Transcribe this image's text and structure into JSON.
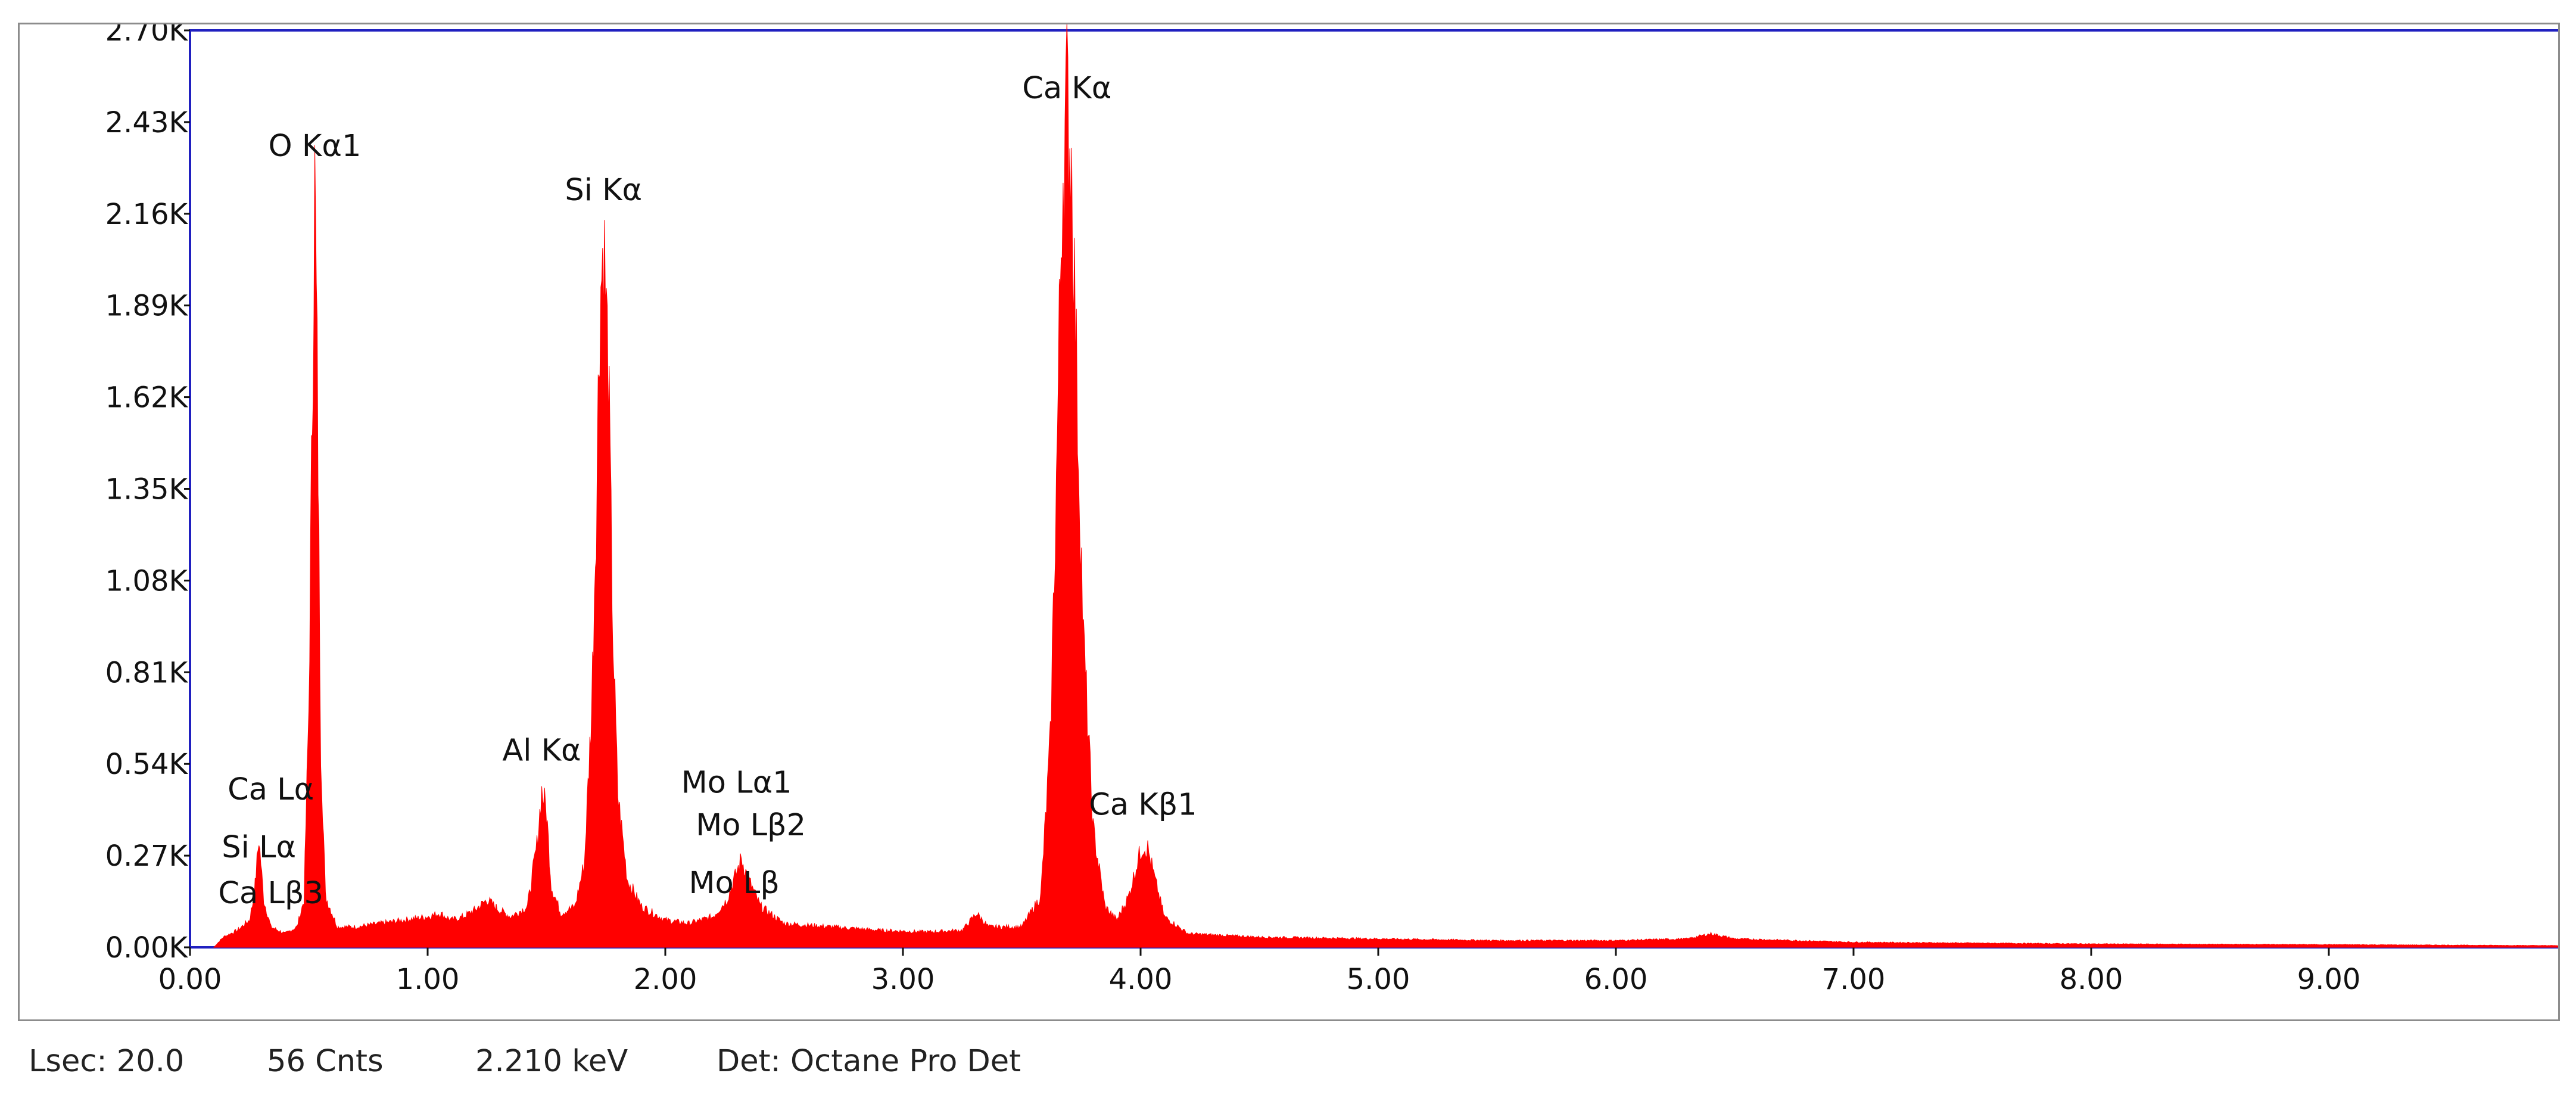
{
  "chart_data": {
    "type": "area",
    "title": "",
    "xlabel": "",
    "ylabel": "",
    "xlim": [
      0,
      10
    ],
    "ylim": [
      0,
      2700
    ],
    "x_ticks": [
      "0.00",
      "1.00",
      "2.00",
      "3.00",
      "4.00",
      "5.00",
      "6.00",
      "7.00",
      "8.00",
      "9.00"
    ],
    "y_ticks": [
      "0.00K",
      "0.27K",
      "0.54K",
      "0.81K",
      "1.08K",
      "1.35K",
      "1.62K",
      "1.89K",
      "2.16K",
      "2.43K",
      "2.70K"
    ],
    "grid": false,
    "series_color": "#ff0000",
    "spectrum": [
      [
        0.1,
        0
      ],
      [
        0.14,
        30
      ],
      [
        0.2,
        50
      ],
      [
        0.25,
        80
      ],
      [
        0.27,
        150
      ],
      [
        0.29,
        320
      ],
      [
        0.31,
        140
      ],
      [
        0.34,
        60
      ],
      [
        0.4,
        40
      ],
      [
        0.45,
        60
      ],
      [
        0.48,
        140
      ],
      [
        0.5,
        700
      ],
      [
        0.515,
        1600
      ],
      [
        0.525,
        2250
      ],
      [
        0.535,
        1700
      ],
      [
        0.55,
        600
      ],
      [
        0.57,
        150
      ],
      [
        0.62,
        60
      ],
      [
        0.7,
        60
      ],
      [
        0.8,
        70
      ],
      [
        0.9,
        80
      ],
      [
        1.0,
        90
      ],
      [
        1.05,
        100
      ],
      [
        1.1,
        80
      ],
      [
        1.15,
        90
      ],
      [
        1.2,
        110
      ],
      [
        1.25,
        140
      ],
      [
        1.3,
        110
      ],
      [
        1.35,
        90
      ],
      [
        1.42,
        120
      ],
      [
        1.46,
        300
      ],
      [
        1.48,
        460
      ],
      [
        1.5,
        400
      ],
      [
        1.52,
        180
      ],
      [
        1.56,
        100
      ],
      [
        1.62,
        120
      ],
      [
        1.66,
        250
      ],
      [
        1.69,
        700
      ],
      [
        1.71,
        1300
      ],
      [
        1.725,
        1900
      ],
      [
        1.74,
        2080
      ],
      [
        1.76,
        1700
      ],
      [
        1.78,
        900
      ],
      [
        1.8,
        450
      ],
      [
        1.84,
        200
      ],
      [
        1.9,
        120
      ],
      [
        2.0,
        80
      ],
      [
        2.1,
        70
      ],
      [
        2.2,
        90
      ],
      [
        2.26,
        140
      ],
      [
        2.29,
        200
      ],
      [
        2.32,
        260
      ],
      [
        2.35,
        200
      ],
      [
        2.4,
        120
      ],
      [
        2.5,
        70
      ],
      [
        2.7,
        60
      ],
      [
        2.9,
        50
      ],
      [
        3.1,
        45
      ],
      [
        3.25,
        50
      ],
      [
        3.31,
        100
      ],
      [
        3.36,
        60
      ],
      [
        3.5,
        60
      ],
      [
        3.58,
        150
      ],
      [
        3.62,
        600
      ],
      [
        3.65,
        1500
      ],
      [
        3.67,
        2250
      ],
      [
        3.69,
        2480
      ],
      [
        3.71,
        2300
      ],
      [
        3.73,
        1700
      ],
      [
        3.76,
        900
      ],
      [
        3.8,
        350
      ],
      [
        3.85,
        120
      ],
      [
        3.9,
        80
      ],
      [
        3.95,
        150
      ],
      [
        3.99,
        260
      ],
      [
        4.01,
        300
      ],
      [
        4.03,
        290
      ],
      [
        4.06,
        200
      ],
      [
        4.1,
        90
      ],
      [
        4.2,
        40
      ],
      [
        4.5,
        30
      ],
      [
        5.0,
        25
      ],
      [
        5.5,
        20
      ],
      [
        6.0,
        20
      ],
      [
        6.3,
        25
      ],
      [
        6.4,
        40
      ],
      [
        6.5,
        25
      ],
      [
        7.0,
        15
      ],
      [
        8.0,
        10
      ],
      [
        9.0,
        8
      ],
      [
        10.0,
        5
      ]
    ],
    "peaks": [
      {
        "label": "O  Kα1",
        "x": 0.525,
        "y": 2250,
        "label_y": 2330
      },
      {
        "label": "Si Kα",
        "x": 1.74,
        "y": 2080,
        "label_y": 2200
      },
      {
        "label": "Ca Kα",
        "x": 3.69,
        "y": 2480,
        "label_y": 2500
      },
      {
        "label": "Al Kα",
        "x": 1.48,
        "y": 460,
        "label_y": 550
      },
      {
        "label": "Ca Lα",
        "x": 0.34,
        "y": 340,
        "label_y": 435
      },
      {
        "label": "Si Lα",
        "x": 0.29,
        "y": 320,
        "label_y": 265
      },
      {
        "label": "Ca Lβ3",
        "x": 0.34,
        "y": 200,
        "label_y": 130
      },
      {
        "label": "Mo Lα1",
        "x": 2.3,
        "y": 260,
        "label_y": 455
      },
      {
        "label": "Mo Lβ2",
        "x": 2.36,
        "y": 260,
        "label_y": 330
      },
      {
        "label": "Mo Lβ",
        "x": 2.29,
        "y": 200,
        "label_y": 160
      },
      {
        "label": "Ca Kβ1",
        "x": 4.01,
        "y": 300,
        "label_y": 390
      }
    ]
  },
  "status": {
    "lsec": "Lsec: 20.0",
    "counts": "56 Cnts",
    "energy": "2.210 keV",
    "detector": "Det: Octane Pro Det"
  }
}
